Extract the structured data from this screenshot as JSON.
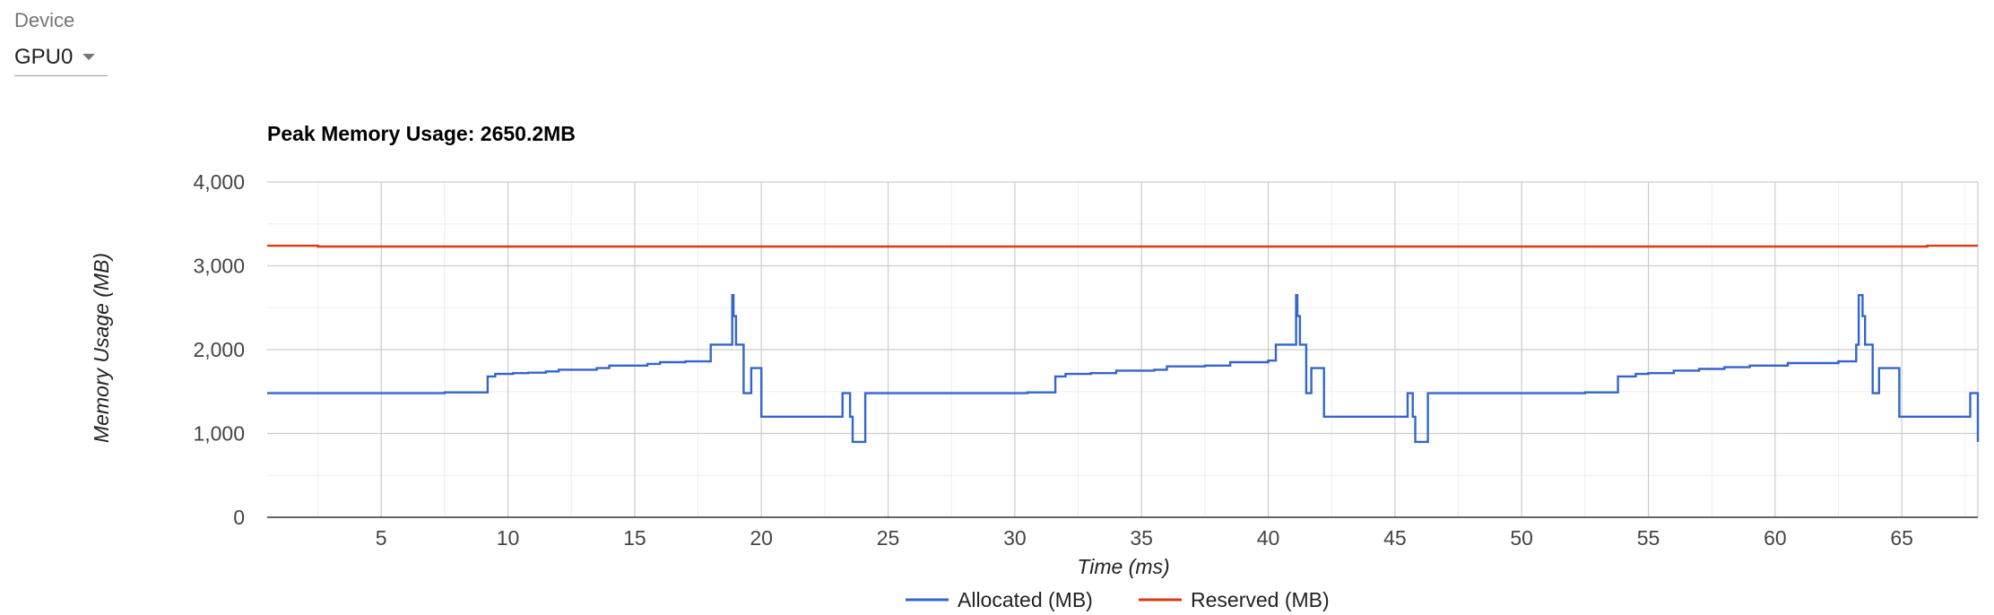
{
  "device": {
    "label": "Device",
    "selected": "GPU0"
  },
  "chart_data": {
    "type": "line",
    "title": "Peak Memory Usage: 2650.2MB",
    "xlabel": "Time (ms)",
    "ylabel": "Memory Usage (MB)",
    "xlim": [
      0.5,
      68
    ],
    "ylim": [
      0,
      4000
    ],
    "xticks": [
      5,
      10,
      15,
      20,
      25,
      30,
      35,
      40,
      45,
      50,
      55,
      60,
      65
    ],
    "yticks": [
      0,
      1000,
      2000,
      3000,
      4000
    ],
    "ytick_labels": [
      "0",
      "1,000",
      "2,000",
      "3,000",
      "4,000"
    ],
    "grid": true,
    "legend_position": "bottom",
    "series": [
      {
        "name": "Allocated (MB)",
        "color": "#3366cc",
        "step": true,
        "x": [
          0.5,
          7.5,
          8.9,
          9.2,
          9.5,
          10.2,
          10.8,
          11.5,
          12.0,
          13.5,
          14.0,
          15.5,
          16.0,
          17.0,
          18.0,
          18.85,
          18.9,
          19.0,
          19.05,
          19.3,
          19.4,
          19.6,
          19.8,
          20.0,
          23.2,
          23.5,
          23.6,
          24.1,
          28.0,
          30.5,
          31.5,
          31.6,
          32.0,
          33.0,
          34.0,
          35.5,
          36.0,
          37.5,
          38.5,
          40.0,
          40.3,
          41.1,
          41.15,
          41.25,
          41.35,
          41.5,
          41.7,
          42.0,
          42.2,
          45.5,
          45.7,
          45.8,
          46.3,
          50.0,
          52.5,
          53.7,
          53.8,
          54.5,
          55.0,
          56.0,
          57.0,
          58.0,
          59.0,
          60.5,
          62.5,
          63.2,
          63.3,
          63.45,
          63.55,
          63.6,
          63.85,
          64.1,
          64.5,
          64.9,
          67.7,
          68.0
        ],
        "values": [
          1480,
          1490,
          1490,
          1680,
          1710,
          1720,
          1725,
          1740,
          1760,
          1780,
          1810,
          1830,
          1850,
          1860,
          2060,
          2650,
          2400,
          2060,
          2060,
          1480,
          1480,
          1780,
          1780,
          1200,
          1480,
          1200,
          900,
          1480,
          1480,
          1490,
          1490,
          1680,
          1710,
          1720,
          1750,
          1760,
          1800,
          1810,
          1850,
          1870,
          2060,
          2650,
          2400,
          2060,
          2060,
          1480,
          1780,
          1780,
          1200,
          1480,
          1200,
          900,
          1480,
          1480,
          1490,
          1490,
          1680,
          1710,
          1720,
          1750,
          1770,
          1790,
          1810,
          1840,
          1860,
          2060,
          2650,
          2400,
          2060,
          2060,
          1480,
          1780,
          1780,
          1200,
          1480,
          900
        ]
      },
      {
        "name": "Reserved (MB)",
        "color": "#dc3912",
        "step": true,
        "x": [
          0.5,
          2.5,
          66.0,
          68.0
        ],
        "values": [
          3240,
          3230,
          3240,
          3240
        ]
      }
    ]
  }
}
